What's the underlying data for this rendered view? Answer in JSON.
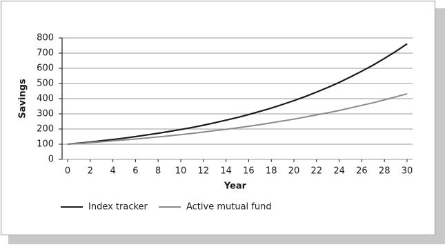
{
  "chart_data": {
    "type": "line",
    "x": [
      0,
      1,
      2,
      3,
      4,
      5,
      6,
      7,
      8,
      9,
      10,
      11,
      12,
      13,
      14,
      15,
      16,
      17,
      18,
      19,
      20,
      21,
      22,
      23,
      24,
      25,
      26,
      27,
      28,
      29,
      30
    ],
    "series": [
      {
        "name": "Index tracker",
        "color": "#1a1a1a",
        "values": [
          100,
          107,
          114,
          123,
          131,
          140,
          150,
          161,
          172,
          184,
          197,
          210,
          225,
          241,
          258,
          276,
          295,
          316,
          338,
          362,
          387,
          414,
          443,
          474,
          507,
          543,
          581,
          621,
          665,
          711,
          761
        ]
      },
      {
        "name": "Active mutual fund",
        "color": "#8a8a8a",
        "values": [
          100,
          105,
          110,
          116,
          122,
          128,
          134,
          141,
          148,
          155,
          163,
          171,
          180,
          189,
          198,
          208,
          218,
          229,
          241,
          253,
          265,
          279,
          293,
          307,
          322,
          339,
          356,
          373,
          392,
          412,
          432
        ]
      }
    ],
    "xlabel": "Year",
    "ylabel": "Savings",
    "xlim": [
      0,
      30
    ],
    "xticks": [
      0,
      2,
      4,
      6,
      8,
      10,
      12,
      14,
      16,
      18,
      20,
      22,
      24,
      26,
      28,
      30
    ],
    "ylim": [
      0,
      800
    ],
    "yticks": [
      0,
      100,
      200,
      300,
      400,
      500,
      600,
      700,
      800
    ],
    "grid": true,
    "legend": "bottom"
  }
}
